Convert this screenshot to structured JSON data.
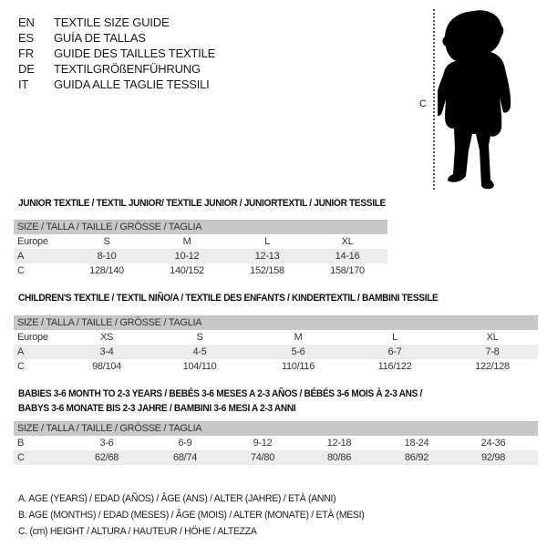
{
  "languages": [
    {
      "code": "EN",
      "text": "TEXTILE SIZE GUIDE"
    },
    {
      "code": "ES",
      "text": "GUÍA DE TALLAS"
    },
    {
      "code": "FR",
      "text": "GUIDE DES TAILLES TEXTILE"
    },
    {
      "code": "DE",
      "text": "TEXTILGRÖßENFÜHRUNG"
    },
    {
      "code": "IT",
      "text": "GUIDA ALLE TAGLIE TESSILI"
    }
  ],
  "figure": {
    "measure_label": "C",
    "icon": "baby-silhouette"
  },
  "sections": [
    {
      "title": "JUNIOR TEXTILE / TEXTIL JUNIOR/ TEXTILE JUNIOR / JUNIORTEXTIL / JUNIOR TESSILE",
      "header": "SIZE / TALLA / TAILLE / GRÖSSE / TAGLIA",
      "rows": [
        {
          "label": "Europe",
          "cells": [
            "S",
            "M",
            "L",
            "XL"
          ]
        },
        {
          "label": "A",
          "cells": [
            "8-10",
            "10-12",
            "12-13",
            "14-16"
          ]
        },
        {
          "label": "C",
          "cells": [
            "128/140",
            "140/152",
            "152/158",
            "158/170"
          ]
        }
      ]
    },
    {
      "title": "CHILDREN'S TEXTILE / TEXTIL NIÑO/A / TEXTILE DES ENFANTS / KINDERTEXTIL / BAMBINI TESSILE",
      "header": "SIZE / TALLA / TAILLE / GRÖSSE / TAGLIA",
      "rows": [
        {
          "label": "Europe",
          "cells": [
            "XS",
            "S",
            "M",
            "L",
            "XL"
          ]
        },
        {
          "label": "A",
          "cells": [
            "3-4",
            "4-5",
            "5-6",
            "6-7",
            "7-8"
          ]
        },
        {
          "label": "C",
          "cells": [
            "98/104",
            "104/110",
            "110/116",
            "116/122",
            "122/128"
          ]
        }
      ]
    },
    {
      "title": "BABIES 3-6 MONTH TO 2-3 YEARS / BEBÉS 3-6 MESES A 2-3 AÑOS / BÉBÉS 3-6 MOIS À 2-3 ANS /",
      "title2": "BABYS 3-6 MONATE BIS 2-3 JAHRE / BAMBINI 3-6 MESI A 2-3 ANNI",
      "header": "SIZE / TALLA / TAILLE / GRÖSSE / TAGLIA",
      "rows": [
        {
          "label": "B",
          "cells": [
            "3-6",
            "6-9",
            "9-12",
            "12-18",
            "18-24",
            "24-36"
          ]
        },
        {
          "label": "C",
          "cells": [
            "62/68",
            "68/74",
            "74/80",
            "80/86",
            "86/92",
            "92/98"
          ]
        }
      ]
    }
  ],
  "legend": [
    "A. AGE (YEARS) / EDAD (AÑOS) / ÂGE (ANS) / ALTER (JAHRE) / ETÀ (ANNI)",
    "B. AGE (MONTHS) / EDAD (MESES) / ÂGE (MOIS) / ALTER (MONATE) / ETÀ (MESI)",
    "C. (cm) HEIGHT / ALTURA / HAUTEUR / HÖHE / ALTEZZA"
  ]
}
